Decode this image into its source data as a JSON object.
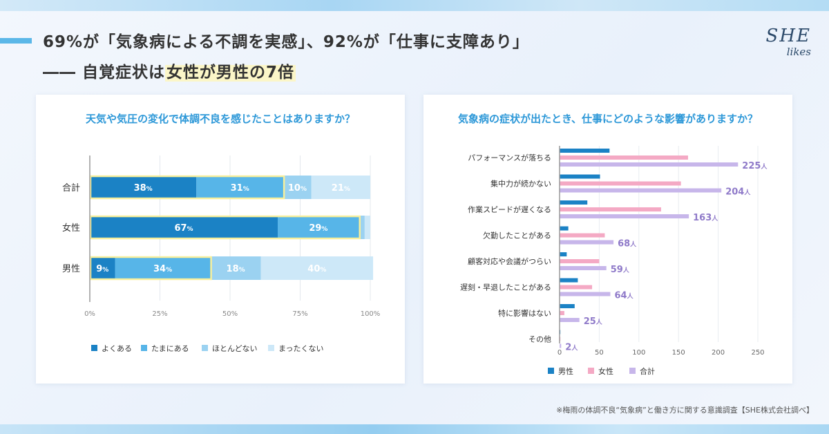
{
  "header": {
    "headline": "69%が「気象病による不調を実感」、92%が「仕事に支障あり」",
    "subline_prefix": "―― 自覚症状は",
    "subline_highlight": "女性が男性の7倍"
  },
  "logo": {
    "line1": "SHE",
    "line2": "likes"
  },
  "footnote": "※梅雨の体調不良“気象病”と働き方に関する意識調査【SHE株式会社調べ】",
  "colors": {
    "often": "#1b82c5",
    "sometimes": "#57b5e8",
    "rarely": "#9bd2f1",
    "never": "#cde8f8",
    "male": "#1b82c5",
    "female": "#f4a9c4",
    "total": "#c7b6ea",
    "accent": "#2d98d8"
  },
  "chart_data": [
    {
      "type": "bar",
      "orientation": "horizontal",
      "stacked": true,
      "title": "天気や気圧の変化で体調不良を感じたことはありますか？",
      "categories": [
        "合計",
        "女性",
        "男性"
      ],
      "series": [
        {
          "name": "よくある",
          "values": [
            38,
            67,
            9
          ],
          "labels": [
            "38",
            "67",
            "9"
          ]
        },
        {
          "name": "たまにある",
          "values": [
            31,
            29,
            34
          ],
          "labels": [
            "31",
            "29",
            "34"
          ]
        },
        {
          "name": "ほとんどない",
          "values": [
            10,
            2,
            18
          ],
          "labels": [
            "10",
            "",
            "18"
          ]
        },
        {
          "name": "まったくない",
          "values": [
            21,
            2,
            40
          ],
          "labels": [
            "21",
            "",
            "40"
          ]
        }
      ],
      "value_unit": "%",
      "highlight_through_series": 1,
      "xlim": [
        0,
        100
      ],
      "xticks": [
        "0%",
        "25%",
        "50%",
        "75%",
        "100%"
      ],
      "legend": [
        "よくある",
        "たまにある",
        "ほとんどない",
        "まったくない"
      ],
      "legend_position": "bottom"
    },
    {
      "type": "bar",
      "orientation": "horizontal",
      "stacked": false,
      "title": "気象病の症状が出たとき、仕事にどのような影響がありますか？",
      "categories": [
        "パフォーマンスが落ちる",
        "集中力が続かない",
        "作業スピードが遅くなる",
        "欠勤したことがある",
        "顧客対応や会議がつらい",
        "遅刻・早退したことがある",
        "特に影響はない",
        "その他"
      ],
      "series": [
        {
          "name": "男性",
          "values": [
            63,
            51,
            35,
            11,
            9,
            23,
            19,
            1
          ]
        },
        {
          "name": "女性",
          "values": [
            162,
            153,
            128,
            57,
            50,
            41,
            6,
            1
          ]
        },
        {
          "name": "合計",
          "values": [
            225,
            204,
            163,
            68,
            59,
            64,
            25,
            2
          ]
        }
      ],
      "total_label_unit": "人",
      "xlim": [
        0,
        250
      ],
      "xticks": [
        "0",
        "50",
        "100",
        "150",
        "200",
        "250"
      ],
      "legend": [
        "男性",
        "女性",
        "合計"
      ],
      "legend_position": "bottom"
    }
  ]
}
